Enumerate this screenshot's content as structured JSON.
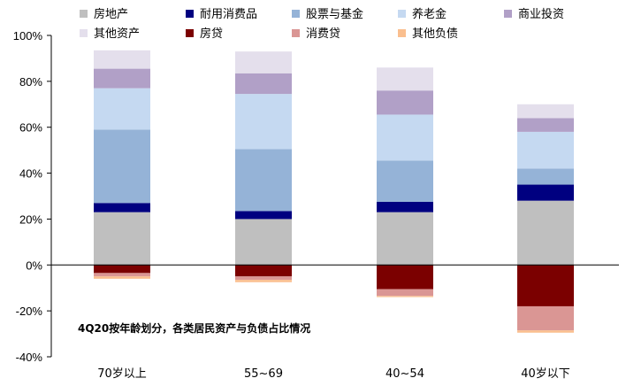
{
  "chart_data": {
    "type": "bar",
    "stacked": true,
    "categories": [
      "70岁以上",
      "55~69",
      "40~54",
      "40岁以下"
    ],
    "ylim": [
      -40,
      100
    ],
    "yticks": [
      -40,
      -20,
      0,
      20,
      40,
      60,
      80,
      100
    ],
    "ytick_labels": [
      "-40%",
      "-20%",
      "0%",
      "20%",
      "40%",
      "60%",
      "80%",
      "100%"
    ],
    "grid": false,
    "legend_placement": "top",
    "annotation": "4Q20按年龄划分，各类居民资产与负债占比情况",
    "series": [
      {
        "name": "房地产",
        "color": "#bfbfbf",
        "values": [
          23,
          20,
          23,
          28
        ]
      },
      {
        "name": "耐用消费品",
        "color": "#000080",
        "values": [
          4,
          3.5,
          4.5,
          7
        ]
      },
      {
        "name": "股票与基金",
        "color": "#95b3d7",
        "values": [
          32,
          27,
          18,
          7
        ]
      },
      {
        "name": "养老金",
        "color": "#c5d9f1",
        "values": [
          18,
          24,
          20,
          16
        ]
      },
      {
        "name": "商业投资",
        "color": "#b1a0c7",
        "values": [
          8.5,
          9,
          10.5,
          6
        ]
      },
      {
        "name": "其他资产",
        "color": "#e4dfec",
        "values": [
          8,
          9.5,
          10,
          6
        ]
      },
      {
        "name": "房贷",
        "color": "#7b0000",
        "values": [
          -3.5,
          -5,
          -10.5,
          -18
        ]
      },
      {
        "name": "消费贷",
        "color": "#da9694",
        "values": [
          -1.5,
          -1.5,
          -3,
          -10.5
        ]
      },
      {
        "name": "其他负债",
        "color": "#fabf8f",
        "values": [
          -1,
          -1,
          -0.5,
          -1
        ]
      }
    ]
  }
}
